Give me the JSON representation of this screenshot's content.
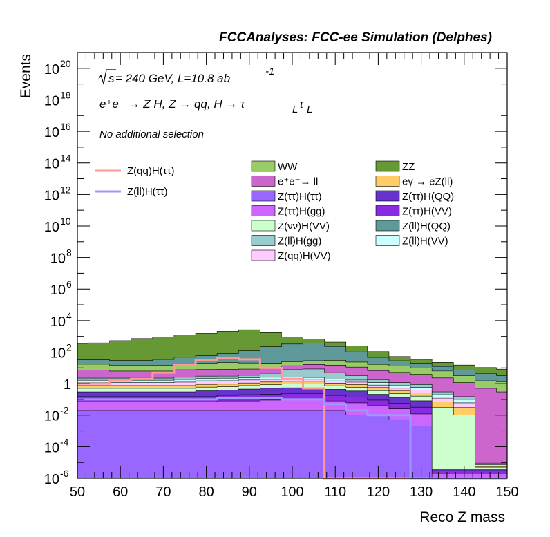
{
  "title": "FCCAnalyses: FCC-ee Simulation (Delphes)",
  "annotations": {
    "sqrt_s": "s",
    "energy_lumi": " = 240 GeV, L=10.8 ab",
    "lumi_exp": "-1",
    "process": "e⁺e⁻ → Z H, Z → qq, H → τ",
    "tau_sub": "L",
    "tau2": "τ",
    "tau2_sub": "L",
    "selection": "No additional selection"
  },
  "chart_data": {
    "type": "area",
    "xlabel": "Reco Z mass",
    "ylabel": "Events",
    "xlim": [
      50,
      150
    ],
    "ylim": [
      1e-06,
      1e+21
    ],
    "log_y": true,
    "grid": false,
    "legend_placement": "top-right",
    "x_ticks": [
      "50",
      "60",
      "70",
      "80",
      "90",
      "100",
      "110",
      "120",
      "130",
      "140",
      "150"
    ],
    "y_ticks": [
      {
        "base": "10",
        "exp": "20"
      },
      {
        "base": "10",
        "exp": "18"
      },
      {
        "base": "10",
        "exp": "16"
      },
      {
        "base": "10",
        "exp": "14"
      },
      {
        "base": "10",
        "exp": "12"
      },
      {
        "base": "10",
        "exp": "10"
      },
      {
        "base": "10",
        "exp": "8"
      },
      {
        "base": "10",
        "exp": "6"
      },
      {
        "base": "10",
        "exp": "4"
      },
      {
        "base": "10",
        "exp": "2"
      },
      {
        "base": "1",
        "exp": ""
      },
      {
        "base": "10",
        "exp": "-2"
      },
      {
        "base": "10",
        "exp": "-4"
      },
      {
        "base": "10",
        "exp": "-6"
      }
    ],
    "x": [
      50,
      55,
      60,
      65,
      70,
      75,
      80,
      85,
      90,
      95,
      100,
      105,
      110,
      115,
      120,
      125,
      130,
      135,
      140,
      145,
      150
    ],
    "stacked_series": [
      {
        "name": "Z(ττ)H(ττ)",
        "color": "#9966ff",
        "values": [
          0.02,
          0.02,
          0.02,
          0.02,
          0.02,
          0.02,
          0.02,
          0.02,
          0.02,
          0.02,
          0.02,
          0.02,
          0.02,
          0.01,
          0.01,
          0.005,
          0.002,
          1e-06,
          1e-06,
          1e-06,
          1e-06
        ]
      },
      {
        "name": "Z(ττ)H(gg)",
        "color": "#cc66ff",
        "values": [
          0.05,
          0.05,
          0.05,
          0.05,
          0.05,
          0.05,
          0.05,
          0.06,
          0.06,
          0.07,
          0.08,
          0.08,
          0.06,
          0.05,
          0.03,
          0.02,
          0.01,
          1e-06,
          1e-06,
          1e-06,
          1e-06
        ]
      },
      {
        "name": "Z(ττ)H(VV)",
        "color": "#8a2be2",
        "values": [
          0.08,
          0.08,
          0.08,
          0.08,
          0.08,
          0.08,
          0.08,
          0.1,
          0.12,
          0.12,
          0.14,
          0.14,
          0.1,
          0.08,
          0.05,
          0.03,
          0.02,
          1e-06,
          1e-06,
          1e-06,
          1e-06
        ]
      },
      {
        "name": "Z(ττ)H(QQ)",
        "color": "#6633cc",
        "values": [
          0.15,
          0.15,
          0.15,
          0.15,
          0.15,
          0.15,
          0.2,
          0.2,
          0.25,
          0.3,
          0.3,
          0.3,
          0.25,
          0.2,
          0.12,
          0.08,
          0.05,
          1e-06,
          1e-06,
          1e-06,
          1e-06
        ]
      },
      {
        "name": "Z(νν)H(VV)",
        "color": "#ccffcc",
        "values": [
          0.2,
          0.2,
          0.2,
          0.2,
          0.2,
          0.2,
          0.25,
          0.25,
          0.3,
          0.35,
          0.4,
          0.4,
          0.3,
          0.25,
          0.15,
          0.1,
          0.08,
          0.03,
          0.01,
          1e-06,
          1e-06
        ]
      },
      {
        "name": "eγ → eZ(ll)",
        "color": "#ffcc66",
        "values": [
          0.25,
          0.25,
          0.25,
          0.25,
          0.25,
          0.25,
          0.3,
          0.3,
          0.35,
          0.4,
          0.45,
          0.45,
          0.35,
          0.3,
          0.2,
          0.12,
          0.1,
          0.04,
          0.02,
          1e-06,
          1e-06
        ]
      },
      {
        "name": "Z(qq)H(VV)",
        "color": "#ffccff",
        "values": [
          0.4,
          0.4,
          0.4,
          0.4,
          0.4,
          0.5,
          0.6,
          0.6,
          0.6,
          0.6,
          0.6,
          0.5,
          0.4,
          0.35,
          0.25,
          0.15,
          0.12,
          0.05,
          0.03,
          1e-06,
          1e-06
        ]
      },
      {
        "name": "Z(ll)H(VV)",
        "color": "#ccffff",
        "values": [
          0.5,
          0.5,
          0.5,
          0.5,
          0.5,
          0.6,
          0.7,
          0.7,
          0.7,
          0.7,
          0.7,
          0.6,
          0.5,
          0.45,
          0.35,
          0.25,
          0.2,
          0.08,
          0.04,
          1e-06,
          1e-06
        ]
      },
      {
        "name": "Z(ll)H(gg)",
        "color": "#99cccc",
        "values": [
          0.6,
          0.6,
          0.6,
          0.6,
          0.6,
          0.7,
          0.8,
          0.8,
          1,
          2,
          5,
          6,
          3,
          1.5,
          0.6,
          0.4,
          0.3,
          0.1,
          0.05,
          1e-06,
          1e-06
        ]
      },
      {
        "name": "e⁺e⁻→ ll",
        "color": "#cc66cc",
        "values": [
          5,
          5,
          4,
          4,
          4,
          5,
          5,
          5,
          5,
          5,
          6,
          8,
          10,
          8,
          5,
          4,
          3,
          2,
          1,
          0.5,
          0.3
        ]
      },
      {
        "name": "WW",
        "color": "#99cc66",
        "values": [
          10,
          10,
          8,
          8,
          8,
          10,
          12,
          14,
          12,
          10,
          10,
          12,
          15,
          12,
          10,
          8,
          6,
          4,
          2,
          1,
          1
        ]
      },
      {
        "name": "Z(ll)H(QQ)",
        "color": "#5f9999",
        "values": [
          15,
          15,
          15,
          15,
          20,
          30,
          40,
          60,
          100,
          200,
          300,
          350,
          200,
          80,
          30,
          15,
          10,
          6,
          4,
          3,
          2
        ]
      },
      {
        "name": "ZZ",
        "color": "#669933",
        "values": [
          300,
          350,
          500,
          700,
          900,
          1200,
          1500,
          2000,
          2500,
          1500,
          600,
          300,
          200,
          150,
          60,
          25,
          15,
          10,
          8,
          6,
          5
        ]
      }
    ],
    "overlay_series": [
      {
        "name": "Z(qq)H(ττ)",
        "color": "#ff9999",
        "values": [
          1,
          1,
          1.5,
          2,
          5,
          15,
          30,
          40,
          35,
          10,
          2,
          0.5,
          1e-06,
          1e-06,
          1e-06,
          1e-06,
          1e-06,
          1e-06,
          1e-06,
          1e-06,
          1e-06
        ]
      },
      {
        "name": "Z(ll)H(ττ)",
        "color": "#9999ff",
        "values": [
          0.1,
          0.1,
          0.1,
          0.1,
          0.1,
          0.1,
          0.1,
          0.12,
          0.12,
          0.12,
          0.1,
          0.1,
          0.05,
          0.02,
          0.01,
          0.01,
          1e-06,
          1e-06,
          1e-06,
          1e-06,
          1e-06
        ]
      }
    ]
  },
  "legend": {
    "overlay": [
      {
        "label": "Z(qq)H(ττ)",
        "color": "#ff9999"
      },
      {
        "label": "Z(ll)H(ττ)",
        "color": "#9999ff"
      }
    ],
    "stack_col1": [
      {
        "label": "WW",
        "color": "#99cc66"
      },
      {
        "label": "e⁺e⁻→ ll",
        "color": "#cc66cc"
      },
      {
        "label": "Z(ττ)H(ττ)",
        "color": "#9966ff"
      },
      {
        "label": "Z(ττ)H(gg)",
        "color": "#cc66ff"
      },
      {
        "label": "Z(νν)H(VV)",
        "color": "#ccffcc"
      },
      {
        "label": "Z(ll)H(gg)",
        "color": "#99cccc"
      },
      {
        "label": "Z(qq)H(VV)",
        "color": "#ffccff"
      }
    ],
    "stack_col2": [
      {
        "label": "ZZ",
        "color": "#669933"
      },
      {
        "label": "eγ → eZ(ll)",
        "color": "#ffcc66"
      },
      {
        "label": "Z(ττ)H(QQ)",
        "color": "#6633cc"
      },
      {
        "label": "Z(ττ)H(VV)",
        "color": "#8a2be2"
      },
      {
        "label": "Z(ll)H(QQ)",
        "color": "#5f9999"
      },
      {
        "label": "Z(ll)H(VV)",
        "color": "#ccffff"
      }
    ]
  }
}
